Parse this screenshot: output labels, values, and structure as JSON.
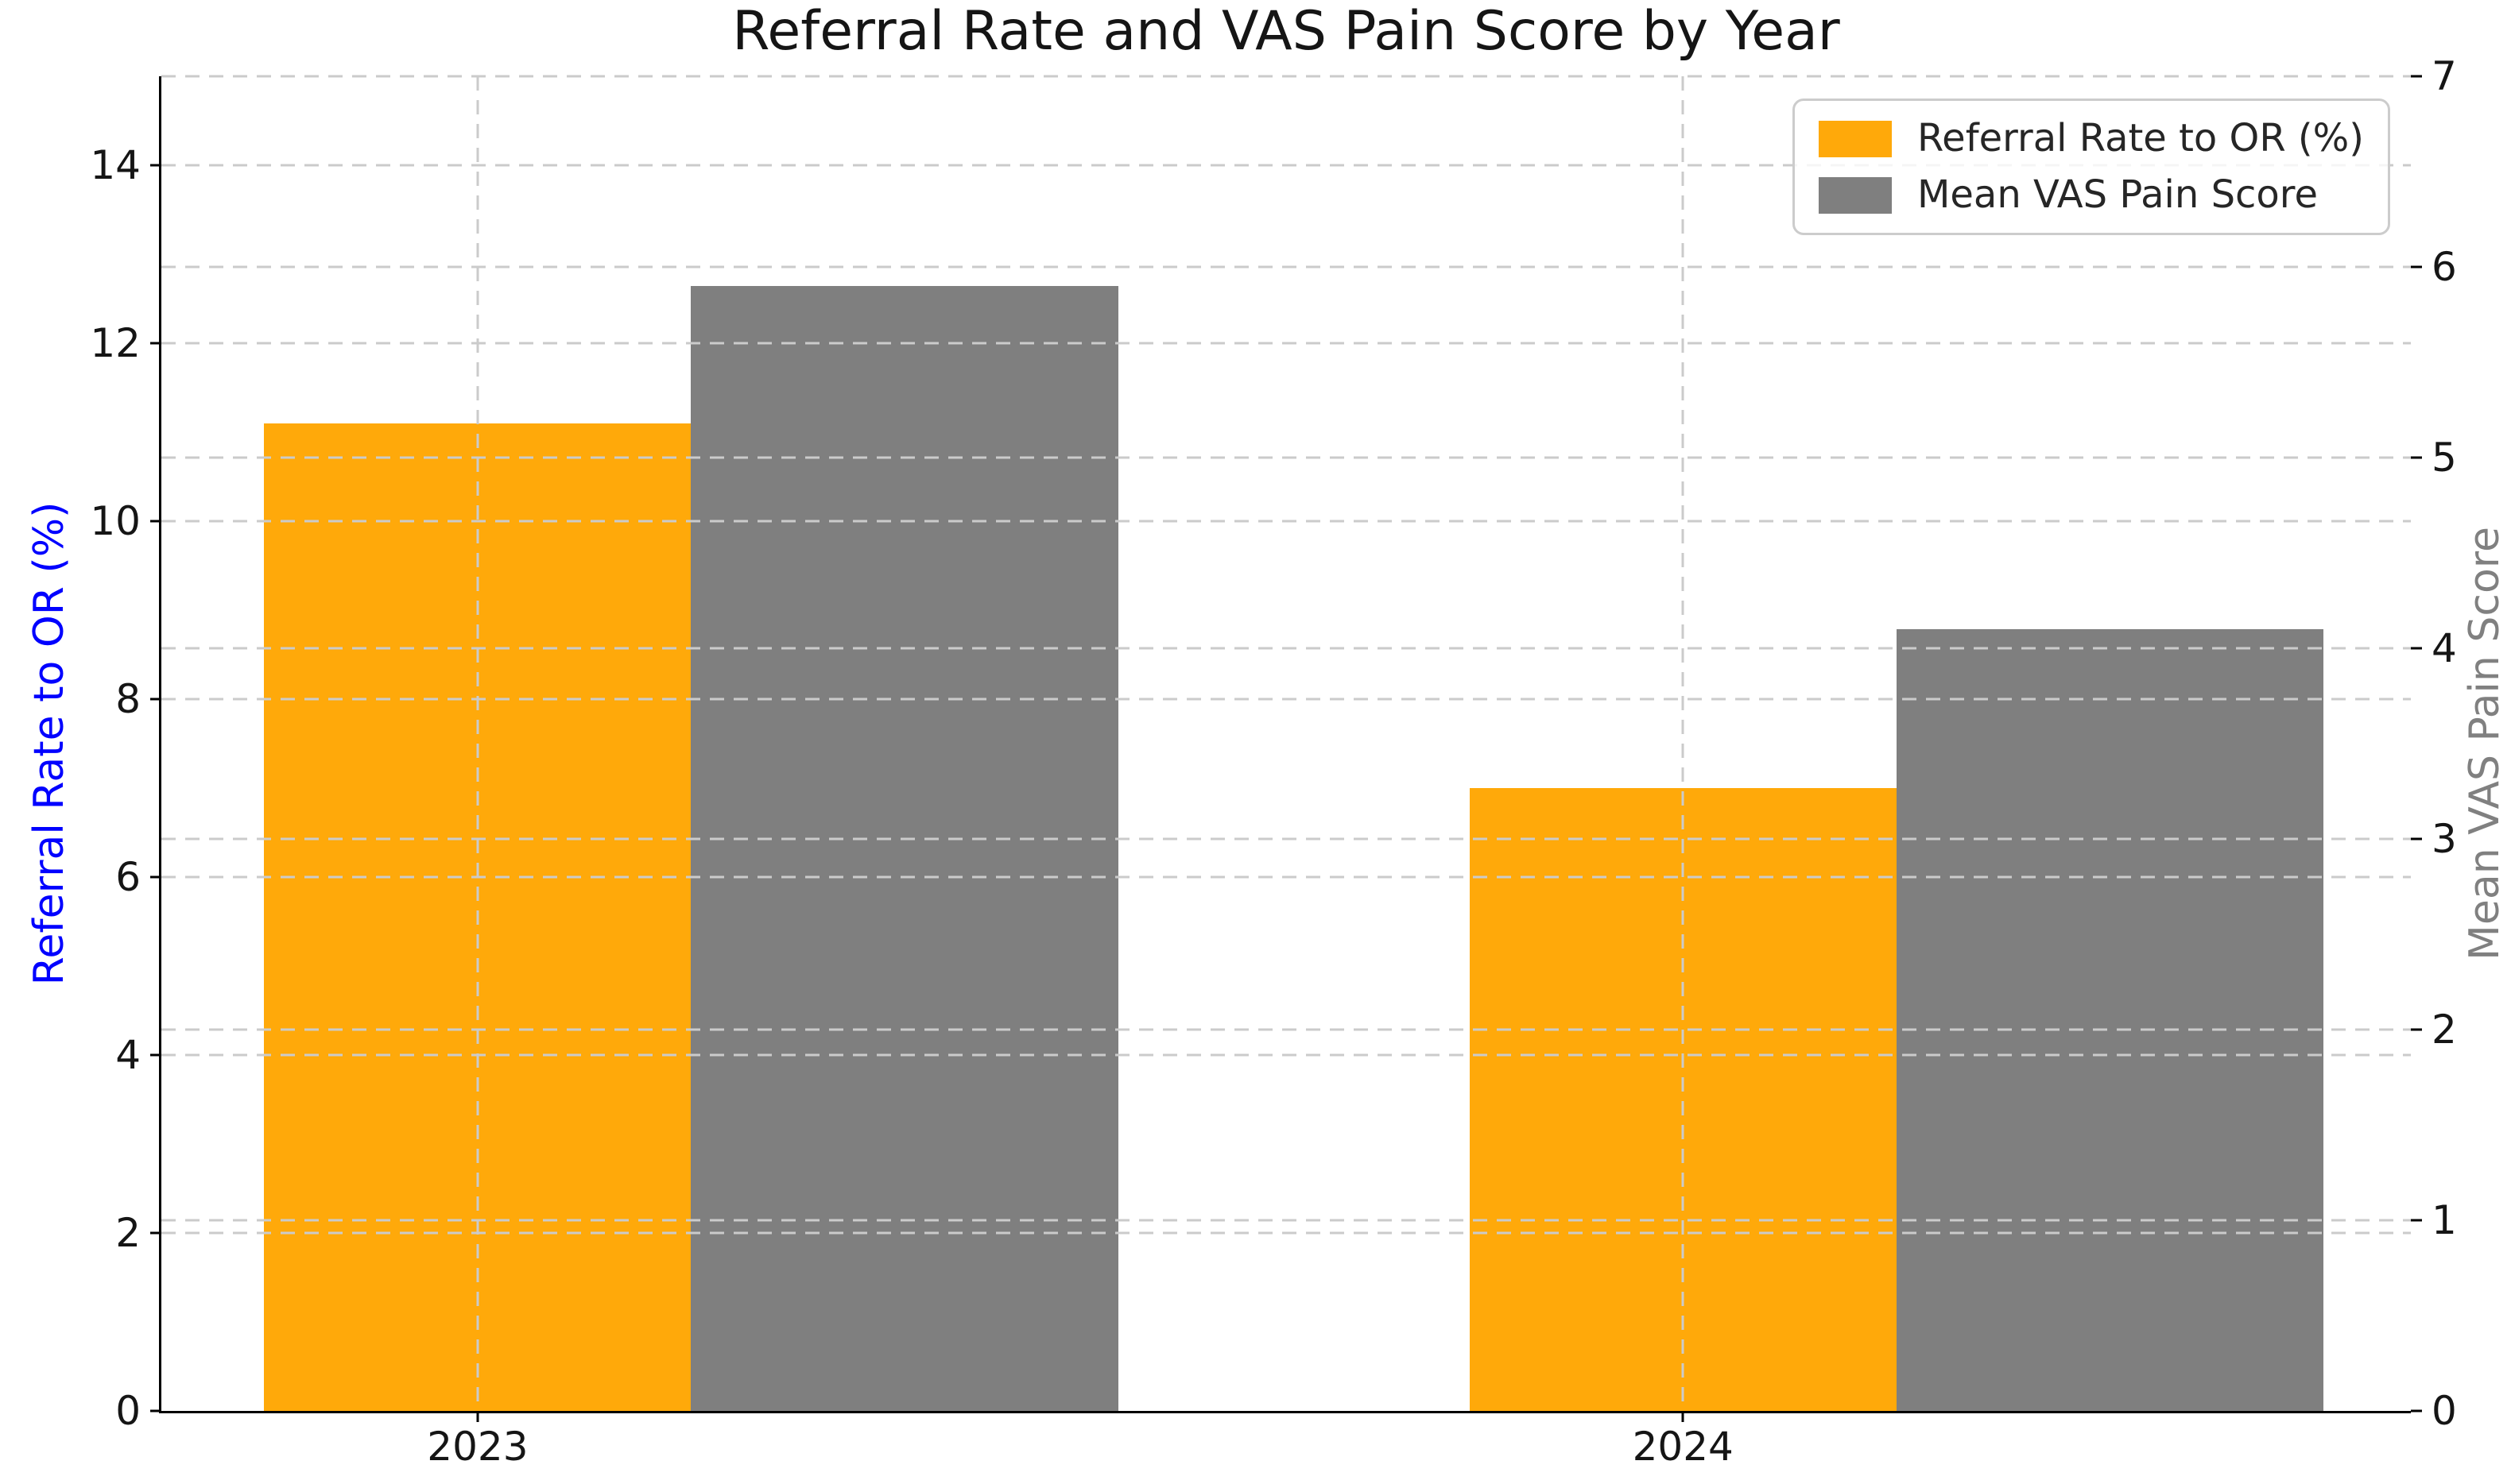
{
  "chart_data": {
    "type": "bar",
    "title": "Referral Rate and VAS Pain Score by Year",
    "categories": [
      "2023",
      "2024"
    ],
    "series": [
      {
        "name": "Referral Rate to OR (%)",
        "axis": "left",
        "color": "#FFA90A",
        "values": [
          11.1,
          7.0
        ]
      },
      {
        "name": "Mean VAS Pain Score",
        "axis": "right",
        "color": "#7F7F7F",
        "values": [
          5.9,
          4.1
        ]
      }
    ],
    "left_axis": {
      "label": "Referral Rate to OR (%)",
      "color": "#0000FF",
      "min": 0,
      "max": 15,
      "ticks": [
        0,
        2,
        4,
        6,
        8,
        10,
        12,
        14
      ]
    },
    "right_axis": {
      "label": "Mean VAS Pain Score",
      "color": "#808080",
      "min": 0,
      "max": 7,
      "ticks": [
        0,
        1,
        2,
        3,
        4,
        5,
        6,
        7
      ]
    },
    "legend": {
      "position": "upper right",
      "entries": [
        "Referral Rate to OR (%)",
        "Mean VAS Pain Score"
      ]
    },
    "grid": {
      "show": true,
      "style": "dashed",
      "x_gridlines_at_categories": true
    }
  }
}
